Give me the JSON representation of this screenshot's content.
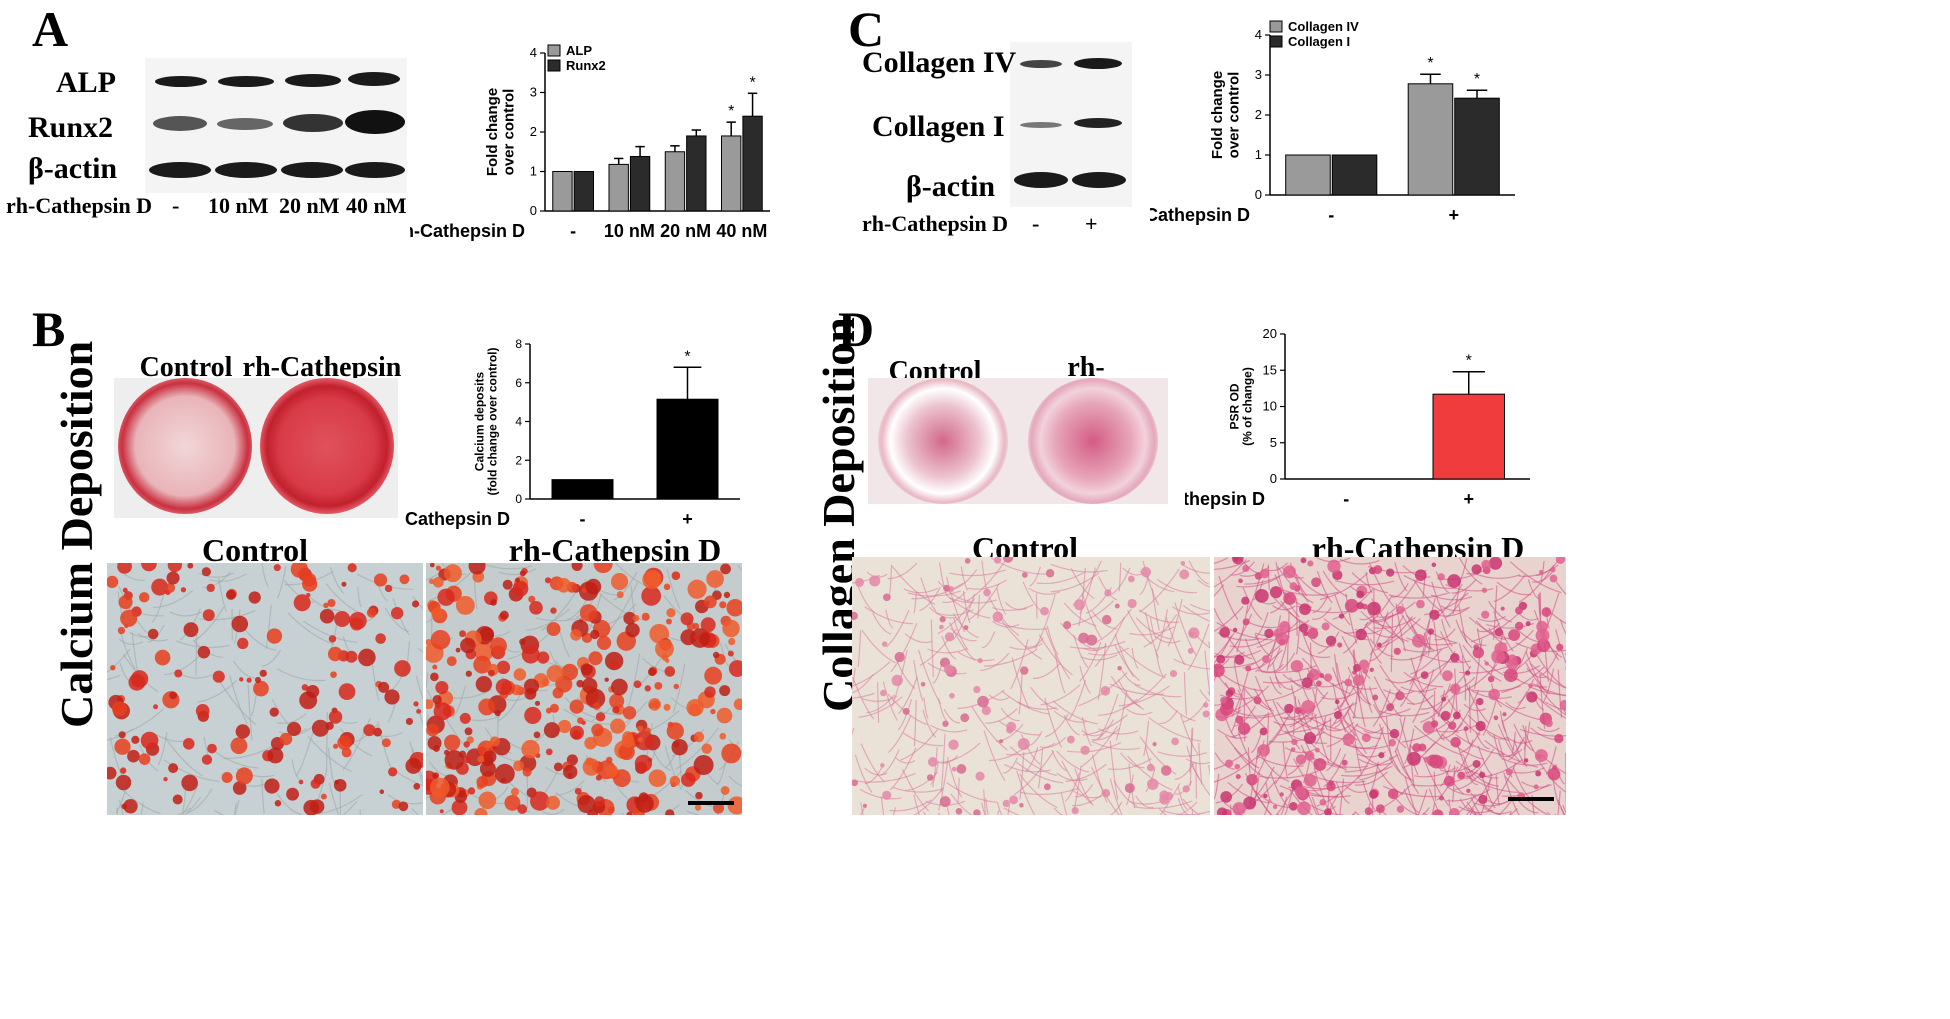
{
  "panels": {
    "A": {
      "letter": "A",
      "blot_labels": [
        "ALP",
        "Runx2",
        "β-actin"
      ],
      "treatment_label": "rh-Cathepsin D",
      "lanes": [
        "-",
        "10 nM",
        "20 nM",
        "40 nM"
      ]
    },
    "B": {
      "letter": "B",
      "section_title": "Calcium Deposition",
      "well_labels": [
        "Control",
        "rh-Cathepsin D"
      ],
      "micro_labels": [
        "Control",
        "rh-Cathepsin D"
      ]
    },
    "C": {
      "letter": "C",
      "blot_labels": [
        "Collagen IV",
        "Collagen I",
        "β-actin"
      ],
      "treatment_label": "rh-Cathepsin D",
      "lanes": [
        "-",
        "+"
      ]
    },
    "D": {
      "letter": "D",
      "section_title": "Collagen Deposition",
      "well_labels": [
        "Control",
        "rh-Cathepsin D"
      ],
      "micro_labels": [
        "Control",
        "rh-Cathepsin D"
      ]
    }
  },
  "chart_data": [
    {
      "id": "A",
      "type": "bar",
      "categories": [
        "-",
        "10 nM",
        "20 nM",
        "40 nM"
      ],
      "category_axis_label": "rh-Cathepsin D",
      "series": [
        {
          "name": "ALP",
          "color": "#9a9a9a",
          "values": [
            1.0,
            1.18,
            1.5,
            1.9
          ],
          "errors": [
            0.0,
            0.15,
            0.15,
            0.35
          ]
        },
        {
          "name": "Runx2",
          "color": "#2b2b2b",
          "values": [
            1.0,
            1.38,
            1.9,
            2.4
          ],
          "errors": [
            0.0,
            0.25,
            0.15,
            0.58
          ]
        }
      ],
      "significance": [
        "",
        "",
        "",
        "*"
      ],
      "ylabel": "Fold change\nover control",
      "ylim": [
        0,
        4
      ],
      "yticks": [
        "0",
        "1",
        "2",
        "3",
        "4"
      ],
      "legend": "top-left"
    },
    {
      "id": "B",
      "type": "bar",
      "categories": [
        "-",
        "+"
      ],
      "category_axis_label": "rh-Cathepsin D",
      "series": [
        {
          "name": "",
          "color": "#000000",
          "values": [
            1.0,
            5.15
          ],
          "errors": [
            0.0,
            1.65
          ]
        }
      ],
      "significance": [
        "",
        "*"
      ],
      "ylabel": "Calcium deposits\n(fold change over control)",
      "ylim": [
        0,
        8
      ],
      "yticks": [
        "0",
        "2",
        "4",
        "6",
        "8"
      ]
    },
    {
      "id": "C",
      "type": "bar",
      "categories": [
        "-",
        "+"
      ],
      "category_axis_label": "rh-Cathepsin D",
      "series": [
        {
          "name": "Collagen IV",
          "color": "#9a9a9a",
          "values": [
            1.0,
            2.78
          ],
          "errors": [
            0.0,
            0.24
          ]
        },
        {
          "name": "Collagen I",
          "color": "#2b2b2b",
          "values": [
            1.0,
            2.42
          ],
          "errors": [
            0.0,
            0.2
          ]
        }
      ],
      "significance": [
        "",
        "*"
      ],
      "ylabel": "Fold change\nover control",
      "ylim": [
        0,
        4
      ],
      "yticks": [
        "0",
        "1",
        "2",
        "3",
        "4"
      ],
      "legend": "top-left"
    },
    {
      "id": "D",
      "type": "bar",
      "categories": [
        "-",
        "+"
      ],
      "category_axis_label": "rh-Cathepsin D",
      "series": [
        {
          "name": "",
          "color": "#f03c3c",
          "values": [
            0.0,
            11.7
          ],
          "errors": [
            0.0,
            3.1
          ]
        }
      ],
      "significance": [
        "",
        "*"
      ],
      "ylabel": "PSR OD\n(% of change)",
      "ylim": [
        0,
        20
      ],
      "yticks": [
        "0",
        "5",
        "10",
        "15",
        "20"
      ]
    }
  ]
}
